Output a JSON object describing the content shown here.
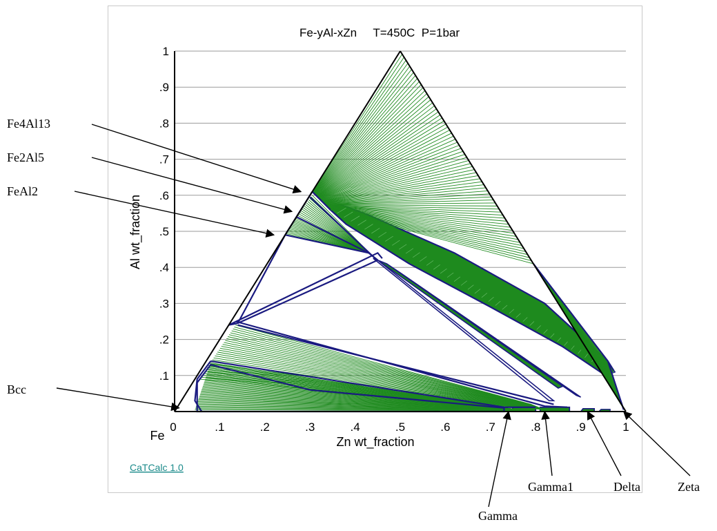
{
  "chart_data": {
    "type": "ternary-phase-diagram",
    "title": "Fe-yAl-xZn     T=450C  P=1bar",
    "xlabel": "Zn wt_fraction",
    "ylabel": "Al wt_fraction",
    "xlim": [
      0,
      1
    ],
    "ylim": [
      0,
      1
    ],
    "x_ticks": [
      "0",
      ".1",
      ".2",
      ".3",
      ".4",
      ".5",
      ".6",
      ".7",
      ".8",
      ".9",
      "1"
    ],
    "y_ticks": [
      ".1",
      ".2",
      ".3",
      ".4",
      ".5",
      ".6",
      ".7",
      ".8",
      ".9",
      "1"
    ],
    "corner_label": "Fe",
    "grid": "horizontal",
    "colors": {
      "tie_lines": "#1e8a1e",
      "boundaries": "#1a1a80",
      "axes": "#000000",
      "grid": "#9a9a9a",
      "link": "#1a8a8a"
    },
    "phase_labels": [
      {
        "name": "Fe4Al13",
        "x": 0.28,
        "y": 0.61
      },
      {
        "name": "Fe2Al5",
        "x": 0.26,
        "y": 0.555
      },
      {
        "name": "FeAl2",
        "x": 0.22,
        "y": 0.49
      },
      {
        "name": "Bcc",
        "x": 0.01,
        "y": 0.01
      },
      {
        "name": "Gamma",
        "x": 0.74,
        "y": 0.0
      },
      {
        "name": "Gamma1",
        "x": 0.82,
        "y": 0.0
      },
      {
        "name": "Delta",
        "x": 0.915,
        "y": 0.0
      },
      {
        "name": "Zeta",
        "x": 0.995,
        "y": 0.0
      }
    ]
  },
  "footer": {
    "link_text": "CaTCalc 1.0"
  }
}
